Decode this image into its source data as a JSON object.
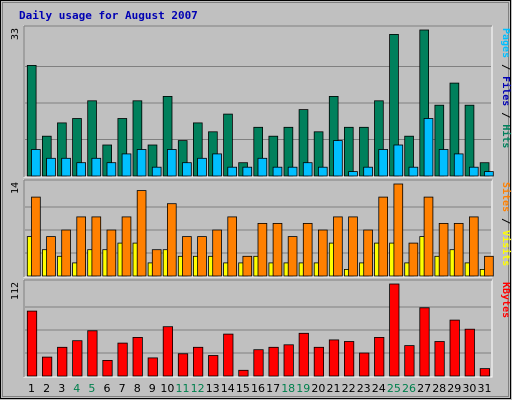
{
  "chart_data": {
    "type": "bar",
    "title": "Daily usage for August 2007",
    "colors": {
      "background": "#c0c0c0",
      "frame": "#ececec",
      "grid": "#808080",
      "title": "#0000b3",
      "axis_text": "#000000",
      "weekend_text": "#00804d",
      "hits": "#00805c",
      "files": "#00bfff",
      "pages": "#00bfff",
      "visits": "#ffff00",
      "sites": "#ff8000",
      "kbytes": "#ff0000"
    },
    "categories": [
      "1",
      "2",
      "3",
      "4",
      "5",
      "6",
      "7",
      "8",
      "9",
      "10",
      "11",
      "12",
      "13",
      "14",
      "15",
      "16",
      "17",
      "18",
      "19",
      "20",
      "21",
      "22",
      "23",
      "24",
      "25",
      "26",
      "27",
      "28",
      "29",
      "30",
      "31"
    ],
    "weekend_days": [
      "4",
      "5",
      "11",
      "12",
      "18",
      "19",
      "25",
      "26"
    ],
    "panels": [
      {
        "id": "hits-files-pages",
        "ymax_label": "33",
        "ylim": [
          0,
          33
        ],
        "side_labels": [
          {
            "text": "Pages",
            "color": "#00bfff"
          },
          {
            "text": " / ",
            "color": "#000000"
          },
          {
            "text": "Files",
            "color": "#0000b3"
          },
          {
            "text": " / ",
            "color": "#000000"
          },
          {
            "text": "Hits",
            "color": "#00805c"
          }
        ],
        "series": [
          {
            "name": "Hits",
            "color": "#00805c",
            "values": [
              25,
              9,
              12,
              13,
              17,
              7,
              13,
              17,
              7,
              18,
              8,
              12,
              10,
              14,
              3,
              11,
              9,
              11,
              15,
              10,
              18,
              11,
              11,
              17,
              32,
              9,
              33,
              16,
              21,
              16,
              3
            ]
          },
          {
            "name": "Files",
            "color": "#00bfff",
            "values": [
              6,
              4,
              4,
              3,
              4,
              3,
              5,
              6,
              2,
              6,
              3,
              4,
              5,
              2,
              2,
              4,
              2,
              2,
              3,
              2,
              8,
              1,
              2,
              6,
              7,
              2,
              13,
              6,
              5,
              2,
              1
            ]
          }
        ]
      },
      {
        "id": "visits-sites",
        "ymax_label": "14",
        "ylim": [
          0,
          14
        ],
        "side_labels": [
          {
            "text": "Sites",
            "color": "#ff8000"
          },
          {
            "text": " / ",
            "color": "#000000"
          },
          {
            "text": "Visits",
            "color": "#ffff00"
          }
        ],
        "series": [
          {
            "name": "Visits",
            "color": "#ffff00",
            "values": [
              6,
              4,
              3,
              2,
              4,
              4,
              5,
              5,
              2,
              4,
              3,
              3,
              3,
              2,
              2,
              3,
              2,
              2,
              2,
              2,
              5,
              1,
              2,
              5,
              5,
              2,
              6,
              3,
              4,
              2,
              1
            ]
          },
          {
            "name": "Sites",
            "color": "#ff8000",
            "values": [
              12,
              6,
              7,
              9,
              9,
              7,
              9,
              13,
              4,
              11,
              6,
              6,
              7,
              9,
              3,
              8,
              8,
              6,
              8,
              7,
              9,
              9,
              7,
              12,
              14,
              5,
              12,
              8,
              8,
              9,
              3
            ]
          }
        ]
      },
      {
        "id": "kbytes",
        "ymax_label": "112",
        "ylim": [
          0,
          112
        ],
        "side_labels": [
          {
            "text": "KBytes",
            "color": "#ff0000"
          }
        ],
        "series": [
          {
            "name": "KBytes",
            "color": "#ff0000",
            "values": [
              79,
              23,
              35,
              43,
              55,
              19,
              40,
              47,
              22,
              60,
              27,
              35,
              25,
              51,
              7,
              32,
              35,
              38,
              52,
              35,
              44,
              42,
              28,
              47,
              112,
              37,
              83,
              42,
              68,
              57,
              9
            ]
          }
        ]
      }
    ]
  }
}
